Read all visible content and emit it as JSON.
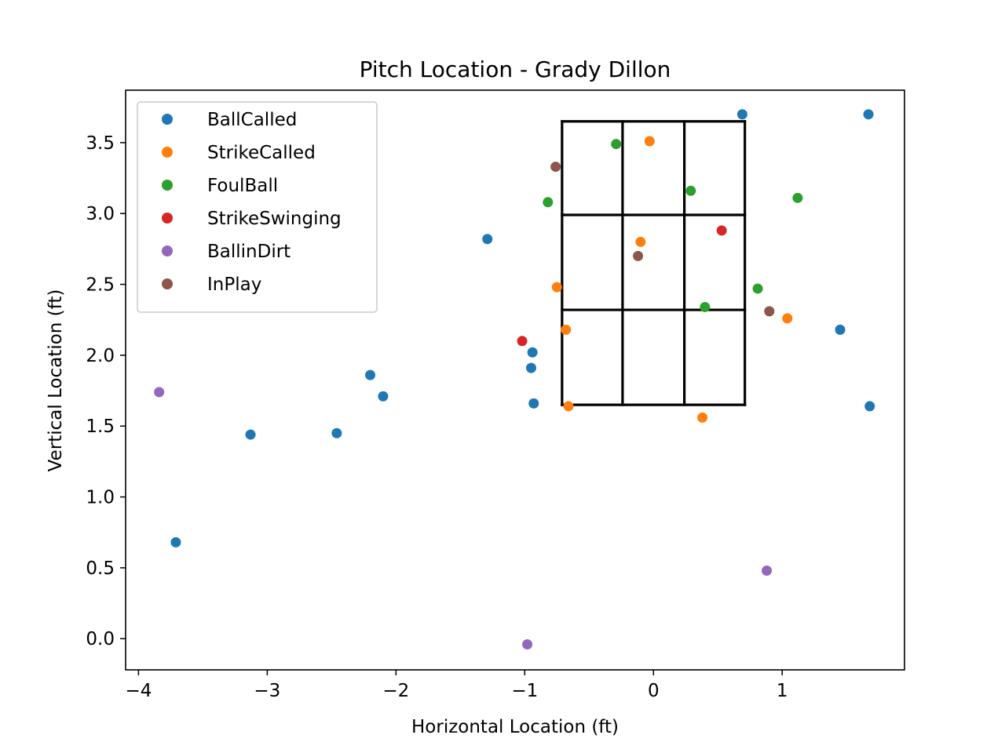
{
  "chart_data": {
    "type": "scatter",
    "title": "Pitch Location - Grady Dillon",
    "xlabel": "Horizontal Location (ft)",
    "ylabel": "Vertical Location (ft)",
    "xlim": [
      -4.1,
      1.95
    ],
    "ylim": [
      -0.22,
      3.87
    ],
    "xticks": [
      -4,
      -3,
      -2,
      -1,
      0,
      1
    ],
    "xtick_labels": [
      "−4",
      "−3",
      "−2",
      "−1",
      "0",
      "1"
    ],
    "yticks": [
      0.0,
      0.5,
      1.0,
      1.5,
      2.0,
      2.5,
      3.0,
      3.5
    ],
    "ytick_labels": [
      "0.0",
      "0.5",
      "1.0",
      "1.5",
      "2.0",
      "2.5",
      "3.0",
      "3.5"
    ],
    "grid": false,
    "legend_position": "top-left",
    "strike_zone": {
      "x_bounds": [
        -0.71,
        -0.24,
        0.24,
        0.71
      ],
      "y_bounds": [
        1.65,
        2.32,
        2.99,
        3.65
      ]
    },
    "series": [
      {
        "name": "BallCalled",
        "color": "#1f77b4",
        "points": [
          [
            0.69,
            3.7
          ],
          [
            1.67,
            3.7
          ],
          [
            -1.29,
            2.82
          ],
          [
            1.45,
            2.18
          ],
          [
            -0.94,
            2.02
          ],
          [
            -0.95,
            1.91
          ],
          [
            -2.2,
            1.86
          ],
          [
            -2.1,
            1.71
          ],
          [
            -0.93,
            1.66
          ],
          [
            1.68,
            1.64
          ],
          [
            -3.13,
            1.44
          ],
          [
            -2.46,
            1.45
          ],
          [
            -3.71,
            0.68
          ]
        ]
      },
      {
        "name": "StrikeCalled",
        "color": "#ff7f0e",
        "points": [
          [
            -0.03,
            3.51
          ],
          [
            -0.1,
            2.8
          ],
          [
            -0.75,
            2.48
          ],
          [
            -0.68,
            2.18
          ],
          [
            1.04,
            2.26
          ],
          [
            -0.66,
            1.64
          ],
          [
            0.38,
            1.56
          ]
        ]
      },
      {
        "name": "FoulBall",
        "color": "#2ca02c",
        "points": [
          [
            -0.29,
            3.49
          ],
          [
            0.29,
            3.16
          ],
          [
            1.12,
            3.11
          ],
          [
            -0.82,
            3.08
          ],
          [
            0.81,
            2.47
          ],
          [
            0.4,
            2.34
          ]
        ]
      },
      {
        "name": "StrikeSwinging",
        "color": "#d62728",
        "points": [
          [
            0.53,
            2.88
          ],
          [
            -1.02,
            2.1
          ]
        ]
      },
      {
        "name": "BallinDirt",
        "color": "#9467bd",
        "points": [
          [
            -3.84,
            1.74
          ],
          [
            0.88,
            0.48
          ],
          [
            -0.98,
            -0.04
          ]
        ]
      },
      {
        "name": "InPlay",
        "color": "#8c564b",
        "points": [
          [
            -0.76,
            3.33
          ],
          [
            -0.12,
            2.7
          ],
          [
            0.9,
            2.31
          ]
        ]
      }
    ]
  }
}
